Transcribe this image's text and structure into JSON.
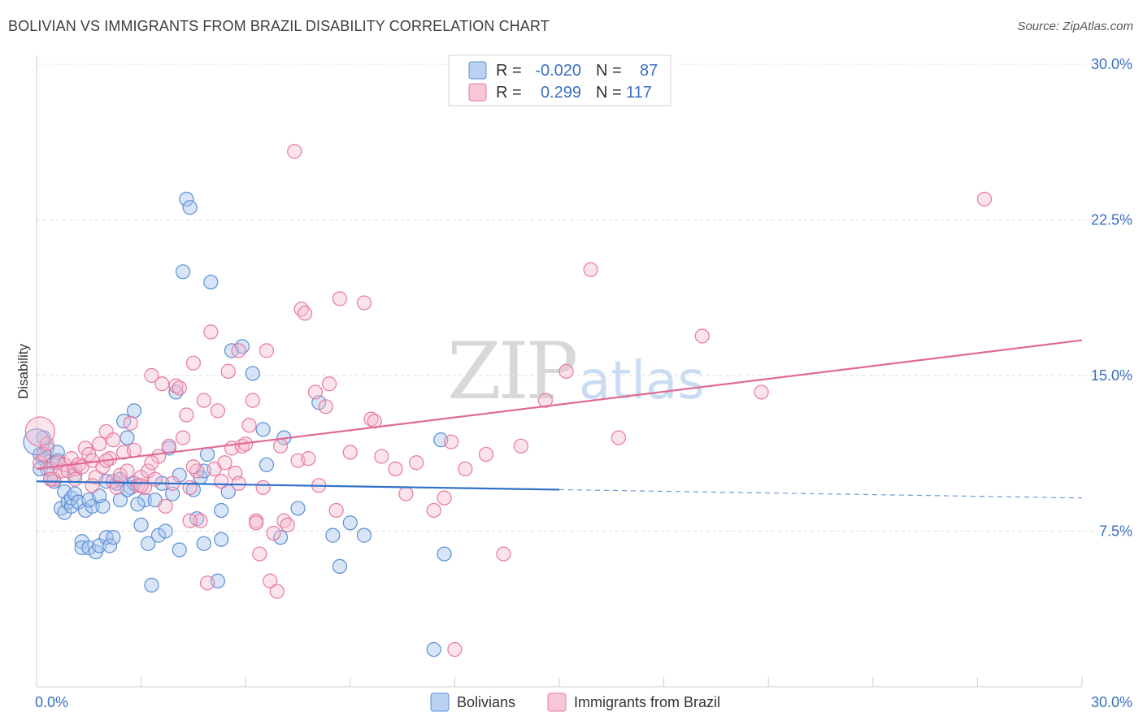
{
  "title": "BOLIVIAN VS IMMIGRANTS FROM BRAZIL DISABILITY CORRELATION CHART",
  "source": "Source: ZipAtlas.com",
  "watermark": {
    "zip": "ZIP",
    "atlas": "atlas"
  },
  "colors": {
    "blue": "#5b8fd6",
    "blue_fill": "#a9c6ee",
    "pink": "#e8799f",
    "pink_fill": "#f5b8cd",
    "blue_line": "#2e6fc9",
    "pink_line": "#e06a96",
    "tick_text": "#3a6fc4"
  },
  "legend": {
    "r_label": "R =",
    "n_label": "N =",
    "series": [
      {
        "r": "-0.020",
        "n": "87"
      },
      {
        "r": "0.299",
        "n": "117"
      }
    ]
  },
  "bottom_legend": [
    "Bolivians",
    "Immigrants from Brazil"
  ],
  "chart_data": {
    "type": "scatter",
    "title": "BOLIVIAN VS IMMIGRANTS FROM BRAZIL DISABILITY CORRELATION CHART",
    "xlabel": "",
    "ylabel": "Disability",
    "xlim": [
      0,
      30
    ],
    "ylim": [
      0,
      30
    ],
    "y_ticks": [
      {
        "value": 7.5,
        "label": "7.5%"
      },
      {
        "value": 15,
        "label": "15.0%"
      },
      {
        "value": 22.5,
        "label": "22.5%"
      },
      {
        "value": 30,
        "label": "30.0%"
      }
    ],
    "x_tick_labels": [
      {
        "value": 0,
        "label": "0.0%"
      },
      {
        "value": 30,
        "label": "30.0%"
      }
    ],
    "series": [
      {
        "name": "Bolivians",
        "trend": {
          "x0": 0,
          "y0": 9.9,
          "x1": 15,
          "y1": 9.5,
          "dash_to_x": 30,
          "dash_to_y": 9.1
        },
        "points": [
          [
            0.1,
            11.2
          ],
          [
            0.2,
            11.0
          ],
          [
            0.3,
            10.5
          ],
          [
            0.3,
            11.5
          ],
          [
            0.4,
            10.0
          ],
          [
            0.5,
            10.8
          ],
          [
            0.6,
            11.3
          ],
          [
            0.7,
            8.6
          ],
          [
            0.8,
            9.4
          ],
          [
            0.8,
            8.4
          ],
          [
            0.9,
            8.9
          ],
          [
            1.0,
            8.7
          ],
          [
            1.0,
            9.1
          ],
          [
            1.1,
            9.3
          ],
          [
            1.2,
            8.9
          ],
          [
            1.3,
            7.0
          ],
          [
            1.3,
            6.7
          ],
          [
            1.4,
            8.5
          ],
          [
            1.5,
            6.7
          ],
          [
            1.6,
            8.7
          ],
          [
            1.7,
            6.5
          ],
          [
            1.8,
            6.8
          ],
          [
            1.9,
            8.7
          ],
          [
            2.0,
            9.9
          ],
          [
            2.0,
            7.2
          ],
          [
            2.1,
            6.8
          ],
          [
            2.2,
            7.2
          ],
          [
            2.3,
            9.8
          ],
          [
            2.4,
            9.0
          ],
          [
            2.5,
            12.8
          ],
          [
            2.6,
            12.0
          ],
          [
            2.7,
            9.6
          ],
          [
            2.8,
            13.3
          ],
          [
            2.8,
            9.8
          ],
          [
            3.0,
            7.8
          ],
          [
            3.1,
            9.0
          ],
          [
            3.2,
            6.9
          ],
          [
            3.3,
            4.9
          ],
          [
            3.4,
            9.0
          ],
          [
            3.5,
            7.3
          ],
          [
            3.6,
            9.8
          ],
          [
            3.8,
            11.5
          ],
          [
            3.9,
            9.3
          ],
          [
            4.0,
            14.2
          ],
          [
            4.1,
            10.2
          ],
          [
            4.1,
            6.6
          ],
          [
            4.2,
            20.0
          ],
          [
            4.3,
            23.5
          ],
          [
            4.4,
            23.1
          ],
          [
            4.5,
            9.5
          ],
          [
            4.6,
            8.1
          ],
          [
            4.7,
            10.1
          ],
          [
            4.8,
            6.9
          ],
          [
            4.9,
            11.2
          ],
          [
            5.0,
            19.5
          ],
          [
            5.2,
            5.1
          ],
          [
            5.3,
            8.5
          ],
          [
            5.3,
            7.1
          ],
          [
            5.5,
            9.4
          ],
          [
            5.6,
            16.2
          ],
          [
            5.9,
            16.4
          ],
          [
            6.2,
            15.1
          ],
          [
            6.5,
            12.4
          ],
          [
            6.6,
            10.7
          ],
          [
            7.0,
            7.2
          ],
          [
            7.1,
            12.0
          ],
          [
            7.5,
            8.6
          ],
          [
            8.1,
            13.7
          ],
          [
            8.5,
            7.3
          ],
          [
            8.7,
            5.8
          ],
          [
            9.0,
            7.9
          ],
          [
            9.4,
            7.3
          ],
          [
            11.4,
            1.8
          ],
          [
            11.6,
            11.9
          ],
          [
            11.7,
            6.4
          ],
          [
            1.5,
            9.0
          ],
          [
            2.6,
            9.5
          ],
          [
            0.2,
            12.0
          ],
          [
            0.5,
            9.9
          ],
          [
            1.8,
            9.2
          ],
          [
            3.7,
            7.5
          ],
          [
            0.1,
            10.5
          ],
          [
            1.1,
            10.2
          ],
          [
            2.9,
            8.8
          ],
          [
            0.6,
            10.9
          ],
          [
            4.8,
            10.4
          ],
          [
            2.4,
            10.0
          ]
        ],
        "highlight_point": [
          0.0,
          11.8
        ]
      },
      {
        "name": "Immigrants from Brazil",
        "trend": {
          "x0": 0,
          "y0": 10.5,
          "x1": 30,
          "y1": 16.7
        },
        "points": [
          [
            0.1,
            10.8
          ],
          [
            0.2,
            11.2
          ],
          [
            0.3,
            11.7
          ],
          [
            0.4,
            10.5
          ],
          [
            0.5,
            10.0
          ],
          [
            0.6,
            10.8
          ],
          [
            0.7,
            10.4
          ],
          [
            0.8,
            10.7
          ],
          [
            0.9,
            10.4
          ],
          [
            1.0,
            11.0
          ],
          [
            1.1,
            10.5
          ],
          [
            1.2,
            10.7
          ],
          [
            1.3,
            10.6
          ],
          [
            1.4,
            11.5
          ],
          [
            1.5,
            11.2
          ],
          [
            1.6,
            10.9
          ],
          [
            1.7,
            10.1
          ],
          [
            1.8,
            11.7
          ],
          [
            1.9,
            10.6
          ],
          [
            2.0,
            12.3
          ],
          [
            2.1,
            11.0
          ],
          [
            2.2,
            9.9
          ],
          [
            2.3,
            9.6
          ],
          [
            2.4,
            10.2
          ],
          [
            2.5,
            11.3
          ],
          [
            2.6,
            10.4
          ],
          [
            2.7,
            12.7
          ],
          [
            2.8,
            11.4
          ],
          [
            2.9,
            9.7
          ],
          [
            3.0,
            10.1
          ],
          [
            3.1,
            9.6
          ],
          [
            3.2,
            10.4
          ],
          [
            3.3,
            15.0
          ],
          [
            3.4,
            10.0
          ],
          [
            3.5,
            11.1
          ],
          [
            3.6,
            14.6
          ],
          [
            3.7,
            8.7
          ],
          [
            3.8,
            11.6
          ],
          [
            3.9,
            9.8
          ],
          [
            4.0,
            14.5
          ],
          [
            4.1,
            14.4
          ],
          [
            4.2,
            12.0
          ],
          [
            4.3,
            13.1
          ],
          [
            4.4,
            9.6
          ],
          [
            4.5,
            15.6
          ],
          [
            4.6,
            10.4
          ],
          [
            4.7,
            8.0
          ],
          [
            4.8,
            13.8
          ],
          [
            4.9,
            5.0
          ],
          [
            5.0,
            17.1
          ],
          [
            5.1,
            10.5
          ],
          [
            5.2,
            13.3
          ],
          [
            5.3,
            9.9
          ],
          [
            5.4,
            10.8
          ],
          [
            5.5,
            15.2
          ],
          [
            5.6,
            11.5
          ],
          [
            5.7,
            10.3
          ],
          [
            5.8,
            16.2
          ],
          [
            5.9,
            11.6
          ],
          [
            6.0,
            11.7
          ],
          [
            6.1,
            12.6
          ],
          [
            6.2,
            13.8
          ],
          [
            6.3,
            8.0
          ],
          [
            6.4,
            6.4
          ],
          [
            6.5,
            9.6
          ],
          [
            6.6,
            16.2
          ],
          [
            6.7,
            5.1
          ],
          [
            6.8,
            7.4
          ],
          [
            6.9,
            4.6
          ],
          [
            7.0,
            11.6
          ],
          [
            7.1,
            8.0
          ],
          [
            7.2,
            7.8
          ],
          [
            7.4,
            25.8
          ],
          [
            7.5,
            10.9
          ],
          [
            7.6,
            18.2
          ],
          [
            7.7,
            18.0
          ],
          [
            7.8,
            11.0
          ],
          [
            8.0,
            14.2
          ],
          [
            8.1,
            9.7
          ],
          [
            8.3,
            13.5
          ],
          [
            8.4,
            14.6
          ],
          [
            8.6,
            8.5
          ],
          [
            8.7,
            18.7
          ],
          [
            9.0,
            11.3
          ],
          [
            9.4,
            18.5
          ],
          [
            9.6,
            12.9
          ],
          [
            9.7,
            12.8
          ],
          [
            10.3,
            10.5
          ],
          [
            10.6,
            9.3
          ],
          [
            10.9,
            10.8
          ],
          [
            11.4,
            8.5
          ],
          [
            11.7,
            9.1
          ],
          [
            11.9,
            11.8
          ],
          [
            12.3,
            10.5
          ],
          [
            12.9,
            11.2
          ],
          [
            13.4,
            6.4
          ],
          [
            13.9,
            11.6
          ],
          [
            14.6,
            13.8
          ],
          [
            15.2,
            15.2
          ],
          [
            15.9,
            20.1
          ],
          [
            16.7,
            12.0
          ],
          [
            19.1,
            16.9
          ],
          [
            20.8,
            14.2
          ],
          [
            27.2,
            23.5
          ],
          [
            12.0,
            1.8
          ],
          [
            4.4,
            8.0
          ],
          [
            3.3,
            10.8
          ],
          [
            1.6,
            9.7
          ],
          [
            2.2,
            11.9
          ],
          [
            6.3,
            7.9
          ],
          [
            5.8,
            9.8
          ],
          [
            9.9,
            11.1
          ],
          [
            0.4,
            10.0
          ],
          [
            2.0,
            10.9
          ],
          [
            1.1,
            10.0
          ],
          [
            3.0,
            9.7
          ],
          [
            4.5,
            10.6
          ]
        ],
        "highlight_point": [
          0.1,
          12.3
        ]
      }
    ]
  }
}
